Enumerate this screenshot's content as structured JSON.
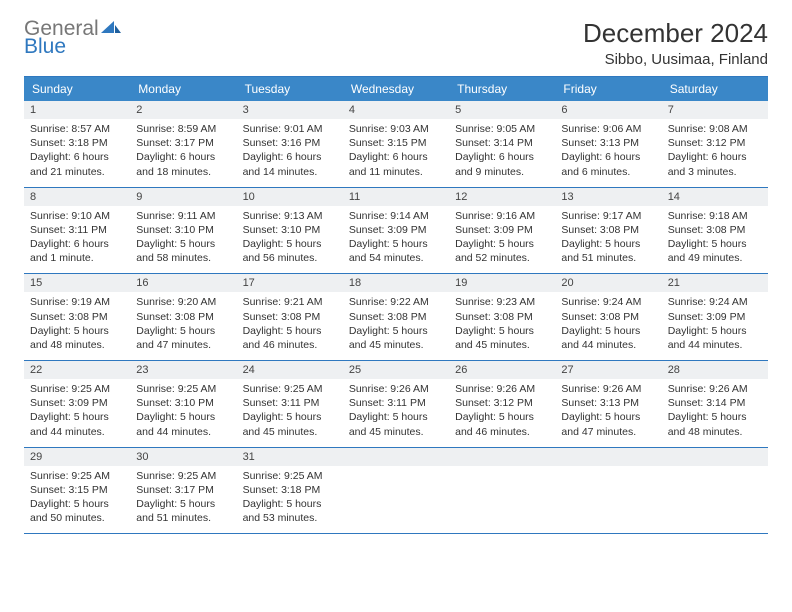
{
  "logo": {
    "gray": "General",
    "blue": "Blue"
  },
  "title": "December 2024",
  "location": "Sibbo, Uusimaa, Finland",
  "colors": {
    "header_bg": "#3a87c8",
    "rule": "#2f78bf",
    "daynum_bg": "#eef0f2",
    "text": "#333333",
    "logo_gray": "#777777",
    "logo_blue": "#2f78bf"
  },
  "day_headers": [
    "Sunday",
    "Monday",
    "Tuesday",
    "Wednesday",
    "Thursday",
    "Friday",
    "Saturday"
  ],
  "weeks": [
    [
      {
        "n": "1",
        "sr": "Sunrise: 8:57 AM",
        "ss": "Sunset: 3:18 PM",
        "d1": "Daylight: 6 hours",
        "d2": "and 21 minutes."
      },
      {
        "n": "2",
        "sr": "Sunrise: 8:59 AM",
        "ss": "Sunset: 3:17 PM",
        "d1": "Daylight: 6 hours",
        "d2": "and 18 minutes."
      },
      {
        "n": "3",
        "sr": "Sunrise: 9:01 AM",
        "ss": "Sunset: 3:16 PM",
        "d1": "Daylight: 6 hours",
        "d2": "and 14 minutes."
      },
      {
        "n": "4",
        "sr": "Sunrise: 9:03 AM",
        "ss": "Sunset: 3:15 PM",
        "d1": "Daylight: 6 hours",
        "d2": "and 11 minutes."
      },
      {
        "n": "5",
        "sr": "Sunrise: 9:05 AM",
        "ss": "Sunset: 3:14 PM",
        "d1": "Daylight: 6 hours",
        "d2": "and 9 minutes."
      },
      {
        "n": "6",
        "sr": "Sunrise: 9:06 AM",
        "ss": "Sunset: 3:13 PM",
        "d1": "Daylight: 6 hours",
        "d2": "and 6 minutes."
      },
      {
        "n": "7",
        "sr": "Sunrise: 9:08 AM",
        "ss": "Sunset: 3:12 PM",
        "d1": "Daylight: 6 hours",
        "d2": "and 3 minutes."
      }
    ],
    [
      {
        "n": "8",
        "sr": "Sunrise: 9:10 AM",
        "ss": "Sunset: 3:11 PM",
        "d1": "Daylight: 6 hours",
        "d2": "and 1 minute."
      },
      {
        "n": "9",
        "sr": "Sunrise: 9:11 AM",
        "ss": "Sunset: 3:10 PM",
        "d1": "Daylight: 5 hours",
        "d2": "and 58 minutes."
      },
      {
        "n": "10",
        "sr": "Sunrise: 9:13 AM",
        "ss": "Sunset: 3:10 PM",
        "d1": "Daylight: 5 hours",
        "d2": "and 56 minutes."
      },
      {
        "n": "11",
        "sr": "Sunrise: 9:14 AM",
        "ss": "Sunset: 3:09 PM",
        "d1": "Daylight: 5 hours",
        "d2": "and 54 minutes."
      },
      {
        "n": "12",
        "sr": "Sunrise: 9:16 AM",
        "ss": "Sunset: 3:09 PM",
        "d1": "Daylight: 5 hours",
        "d2": "and 52 minutes."
      },
      {
        "n": "13",
        "sr": "Sunrise: 9:17 AM",
        "ss": "Sunset: 3:08 PM",
        "d1": "Daylight: 5 hours",
        "d2": "and 51 minutes."
      },
      {
        "n": "14",
        "sr": "Sunrise: 9:18 AM",
        "ss": "Sunset: 3:08 PM",
        "d1": "Daylight: 5 hours",
        "d2": "and 49 minutes."
      }
    ],
    [
      {
        "n": "15",
        "sr": "Sunrise: 9:19 AM",
        "ss": "Sunset: 3:08 PM",
        "d1": "Daylight: 5 hours",
        "d2": "and 48 minutes."
      },
      {
        "n": "16",
        "sr": "Sunrise: 9:20 AM",
        "ss": "Sunset: 3:08 PM",
        "d1": "Daylight: 5 hours",
        "d2": "and 47 minutes."
      },
      {
        "n": "17",
        "sr": "Sunrise: 9:21 AM",
        "ss": "Sunset: 3:08 PM",
        "d1": "Daylight: 5 hours",
        "d2": "and 46 minutes."
      },
      {
        "n": "18",
        "sr": "Sunrise: 9:22 AM",
        "ss": "Sunset: 3:08 PM",
        "d1": "Daylight: 5 hours",
        "d2": "and 45 minutes."
      },
      {
        "n": "19",
        "sr": "Sunrise: 9:23 AM",
        "ss": "Sunset: 3:08 PM",
        "d1": "Daylight: 5 hours",
        "d2": "and 45 minutes."
      },
      {
        "n": "20",
        "sr": "Sunrise: 9:24 AM",
        "ss": "Sunset: 3:08 PM",
        "d1": "Daylight: 5 hours",
        "d2": "and 44 minutes."
      },
      {
        "n": "21",
        "sr": "Sunrise: 9:24 AM",
        "ss": "Sunset: 3:09 PM",
        "d1": "Daylight: 5 hours",
        "d2": "and 44 minutes."
      }
    ],
    [
      {
        "n": "22",
        "sr": "Sunrise: 9:25 AM",
        "ss": "Sunset: 3:09 PM",
        "d1": "Daylight: 5 hours",
        "d2": "and 44 minutes."
      },
      {
        "n": "23",
        "sr": "Sunrise: 9:25 AM",
        "ss": "Sunset: 3:10 PM",
        "d1": "Daylight: 5 hours",
        "d2": "and 44 minutes."
      },
      {
        "n": "24",
        "sr": "Sunrise: 9:25 AM",
        "ss": "Sunset: 3:11 PM",
        "d1": "Daylight: 5 hours",
        "d2": "and 45 minutes."
      },
      {
        "n": "25",
        "sr": "Sunrise: 9:26 AM",
        "ss": "Sunset: 3:11 PM",
        "d1": "Daylight: 5 hours",
        "d2": "and 45 minutes."
      },
      {
        "n": "26",
        "sr": "Sunrise: 9:26 AM",
        "ss": "Sunset: 3:12 PM",
        "d1": "Daylight: 5 hours",
        "d2": "and 46 minutes."
      },
      {
        "n": "27",
        "sr": "Sunrise: 9:26 AM",
        "ss": "Sunset: 3:13 PM",
        "d1": "Daylight: 5 hours",
        "d2": "and 47 minutes."
      },
      {
        "n": "28",
        "sr": "Sunrise: 9:26 AM",
        "ss": "Sunset: 3:14 PM",
        "d1": "Daylight: 5 hours",
        "d2": "and 48 minutes."
      }
    ],
    [
      {
        "n": "29",
        "sr": "Sunrise: 9:25 AM",
        "ss": "Sunset: 3:15 PM",
        "d1": "Daylight: 5 hours",
        "d2": "and 50 minutes."
      },
      {
        "n": "30",
        "sr": "Sunrise: 9:25 AM",
        "ss": "Sunset: 3:17 PM",
        "d1": "Daylight: 5 hours",
        "d2": "and 51 minutes."
      },
      {
        "n": "31",
        "sr": "Sunrise: 9:25 AM",
        "ss": "Sunset: 3:18 PM",
        "d1": "Daylight: 5 hours",
        "d2": "and 53 minutes."
      },
      {
        "empty": true
      },
      {
        "empty": true
      },
      {
        "empty": true
      },
      {
        "empty": true
      }
    ]
  ]
}
